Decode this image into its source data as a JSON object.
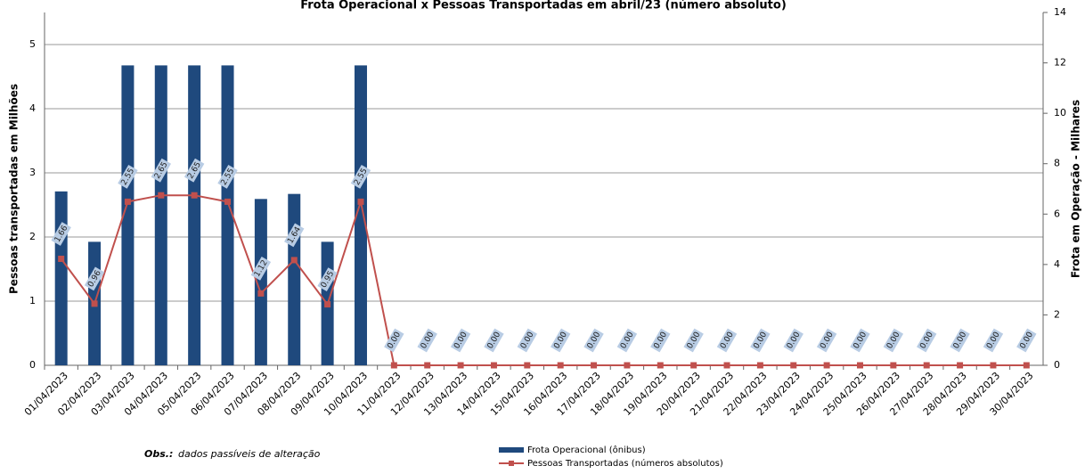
{
  "chart_data": {
    "type": "bar-line",
    "title": "Frota Operacional x Pessoas Transportadas em abril/23 (número absoluto)",
    "y_label": "Pessoas transportadas em Milhões",
    "y2_label": "Frota  em Operação - Milhares",
    "note_label": "Obs.:",
    "note_text": "dados passíveis de alteração",
    "categories": [
      "01/04/2023",
      "02/04/2023",
      "03/04/2023",
      "04/04/2023",
      "05/04/2023",
      "06/04/2023",
      "07/04/2023",
      "08/04/2023",
      "09/04/2023",
      "10/04/2023",
      "11/04/2023",
      "12/04/2023",
      "13/04/2023",
      "14/04/2023",
      "15/04/2023",
      "16/04/2023",
      "17/04/2023",
      "18/04/2023",
      "19/04/2023",
      "20/04/2023",
      "21/04/2023",
      "22/04/2023",
      "23/04/2023",
      "24/04/2023",
      "25/04/2023",
      "26/04/2023",
      "27/04/2023",
      "28/04/2023",
      "29/04/2023",
      "30/04/2023"
    ],
    "series": [
      {
        "name": "Frota Operacional (ônibus)",
        "kind": "bar",
        "axis": "y2",
        "color": "#1f497d",
        "values": [
          6.9,
          4.9,
          11.9,
          11.9,
          11.9,
          11.9,
          6.6,
          6.8,
          4.9,
          11.9,
          null,
          null,
          null,
          null,
          null,
          null,
          null,
          null,
          null,
          null,
          null,
          null,
          null,
          null,
          null,
          null,
          null,
          null,
          null,
          null
        ]
      },
      {
        "name": "Pessoas Transportadas (números absolutos)",
        "kind": "line",
        "color": "#c0504d",
        "values": [
          1.66,
          0.96,
          2.55,
          2.65,
          2.65,
          2.55,
          1.12,
          1.64,
          0.95,
          2.55,
          0,
          0,
          0,
          0,
          0,
          0,
          0,
          0,
          0,
          0,
          0,
          0,
          0,
          0,
          0,
          0,
          0,
          0,
          0,
          0
        ],
        "value_labels": [
          "1.66",
          "0.96",
          "2.55",
          "2.65",
          "2.65",
          "2.55",
          "1.12",
          "1.64",
          "0.95",
          "2.55",
          "0.00",
          "0.00",
          "0.00",
          "0.00",
          "0.00",
          "0.00",
          "0.00",
          "0.00",
          "0.00",
          "0.00",
          "0.00",
          "0.00",
          "0.00",
          "0.00",
          "0.00",
          "0.00",
          "0.00",
          "0.00",
          "0.00",
          "0.00"
        ]
      }
    ],
    "ylim": [
      0,
      5.5
    ],
    "yticks": [
      0,
      1,
      2,
      3,
      4,
      5
    ],
    "y2lim": [
      0,
      14
    ],
    "y2ticks": [
      0,
      2,
      4,
      6,
      8,
      10,
      12,
      14
    ],
    "grid": true
  }
}
